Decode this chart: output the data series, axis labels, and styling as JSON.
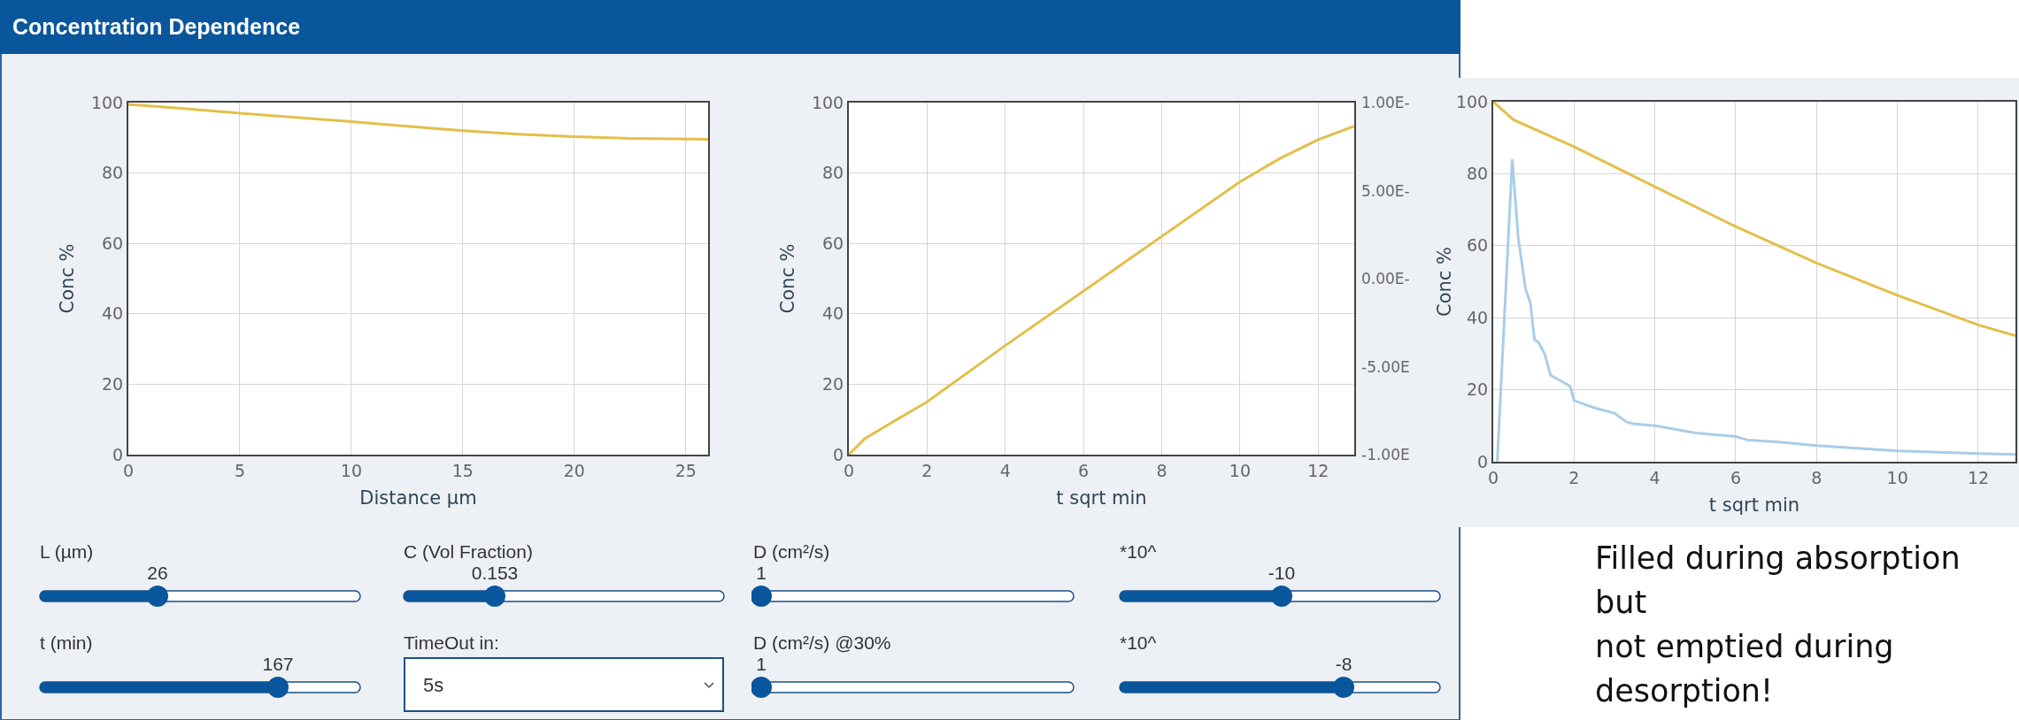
{
  "chart_data": [
    {
      "type": "line",
      "title": "Concentration Dependence",
      "xlabel": "Distance µm",
      "ylabel": "Conc %",
      "xlim": [
        0,
        26
      ],
      "xticks": [
        0,
        5,
        10,
        15,
        20,
        25
      ],
      "ylim": [
        0,
        100
      ],
      "yticks": [
        0,
        20,
        40,
        60,
        80,
        100
      ],
      "grid": true,
      "series": [
        {
          "color": "#e3bf4a",
          "x": [
            0,
            2.5,
            5,
            7.5,
            10,
            12.5,
            15,
            17.5,
            20,
            22.5,
            26
          ],
          "values": [
            99.5,
            98.3,
            97,
            95.8,
            94.6,
            93.3,
            92,
            91,
            90.3,
            89.8,
            89.6
          ]
        }
      ]
    },
    {
      "type": "line",
      "xlabel": "t sqrt min",
      "ylabel": "Conc %",
      "xlim": [
        0,
        12.92
      ],
      "xticks": [
        0,
        2,
        4,
        6,
        8,
        10,
        12
      ],
      "ylim": [
        0,
        100
      ],
      "yticks": [
        0,
        20,
        40,
        60,
        80,
        100
      ],
      "grid": true,
      "annotations": [
        "1.00E-",
        "5.00E-",
        "0.00E-",
        "-5.00E",
        "-1.00E"
      ],
      "series": [
        {
          "color": "#e3bf4a",
          "x": [
            0,
            0.4,
            1,
            2,
            4,
            6,
            8,
            10,
            11,
            12,
            12.92
          ],
          "values": [
            0,
            4.5,
            8.5,
            15,
            31,
            46.5,
            62,
            77.5,
            84,
            89.5,
            93.3
          ]
        }
      ]
    },
    {
      "type": "line",
      "xlabel": "t sqrt min",
      "ylabel": "Conc %",
      "xlim": [
        0,
        12.92
      ],
      "xticks": [
        0,
        2,
        4,
        6,
        8,
        10,
        12
      ],
      "ylim": [
        0,
        100
      ],
      "yticks": [
        0,
        20,
        40,
        60,
        80,
        100
      ],
      "grid": true,
      "annotations": [
        "Filled during absorption\nbut\nnot emptied during\ndesorption!"
      ],
      "series": [
        {
          "color": "#e3bf4a",
          "x": [
            0,
            0.5,
            2,
            4,
            6,
            8,
            10,
            12,
            12.92
          ],
          "values": [
            100,
            95,
            87.5,
            76.4,
            65.3,
            55.2,
            46.2,
            38,
            35
          ]
        },
        {
          "color": "#a9cdea",
          "x": [
            0.1,
            0.47,
            0.62,
            0.8,
            0.92,
            1.02,
            1.13,
            1.27,
            1.42,
            1.9,
            2,
            2.5,
            3,
            3.3,
            3.5,
            4,
            5,
            6,
            6.3,
            7,
            8,
            10,
            12,
            12.92
          ],
          "values": [
            0,
            84,
            62,
            48,
            44,
            34,
            33,
            30,
            24,
            21,
            17,
            15,
            13.5,
            11,
            10.5,
            10,
            8,
            7,
            6,
            5.5,
            4.5,
            3,
            2.3,
            2
          ]
        }
      ]
    },
    {
      "type": "other",
      "annotations": [
        "L (µm)",
        "26",
        "C (Vol Fraction)",
        "0.153",
        "D (cm²/s)",
        "1",
        "*10^",
        "-10",
        "t (min)",
        "167",
        "TimeOut in:",
        "5s",
        "D (cm²/s) @30%",
        "1",
        "*10^",
        "-8"
      ]
    }
  ]
}
